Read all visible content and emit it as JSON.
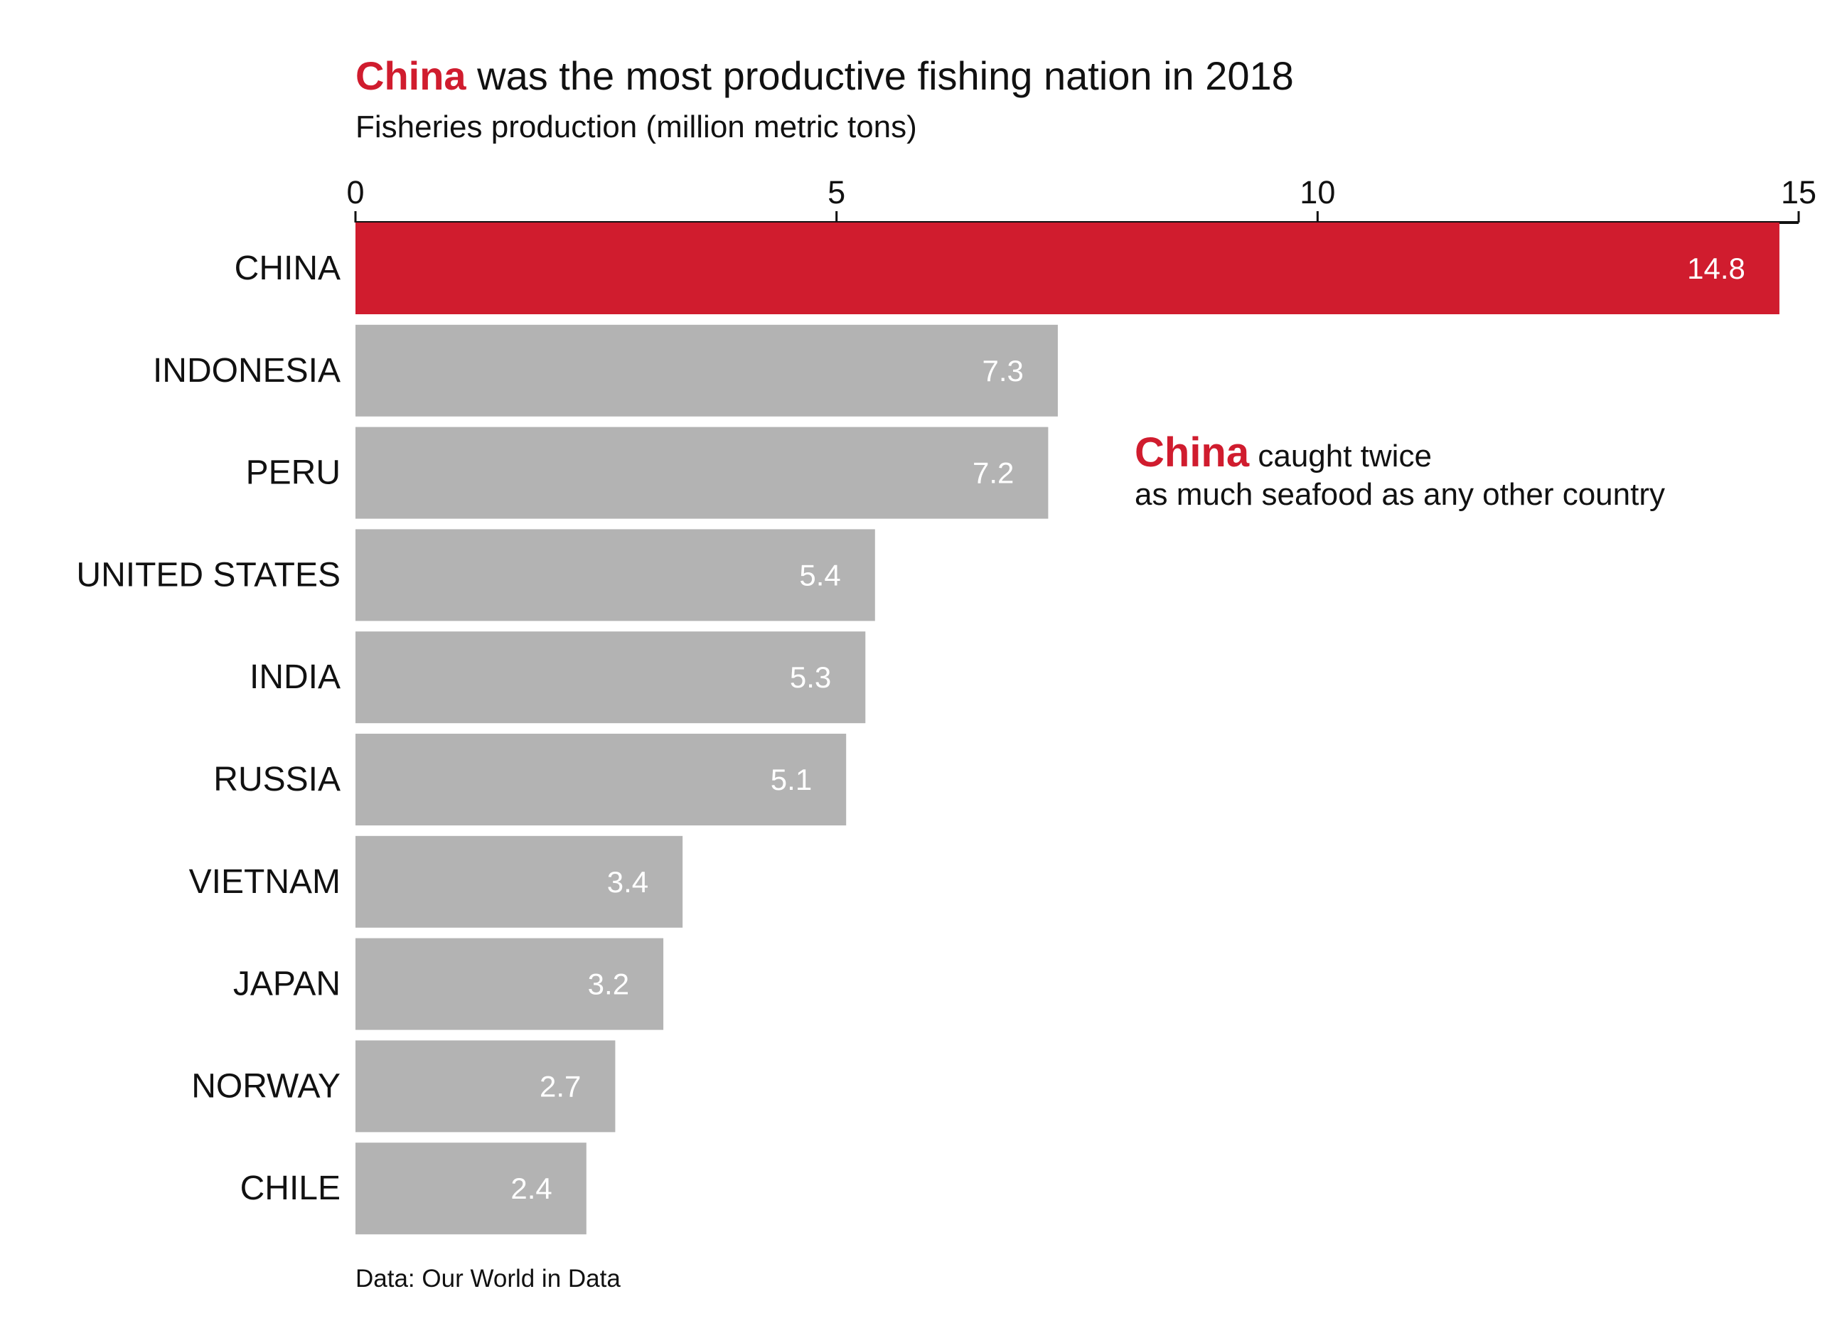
{
  "title": {
    "highlight": "China",
    "rest": " was the most productive fishing nation in 2018"
  },
  "subtitle": "Fisheries production (million metric tons)",
  "annotation": {
    "highlight": "China",
    "line1_rest": " caught twice",
    "line2": "as much seafood as any other country"
  },
  "source": "Data: Our World in Data",
  "colors": {
    "highlight": "#d01c2e",
    "bar": "#b3b3b3",
    "text": "#111111",
    "value_label": "#ffffff"
  },
  "chart_data": {
    "type": "bar",
    "orientation": "horizontal",
    "axis_position": "top",
    "xlim": [
      0,
      15
    ],
    "xticks": [
      0,
      5,
      10,
      15
    ],
    "grid": false,
    "categories": [
      "CHINA",
      "INDONESIA",
      "PERU",
      "UNITED STATES",
      "INDIA",
      "RUSSIA",
      "VIETNAM",
      "JAPAN",
      "NORWAY",
      "CHILE"
    ],
    "values": [
      14.8,
      7.3,
      7.2,
      5.4,
      5.3,
      5.1,
      3.4,
      3.2,
      2.7,
      2.4
    ],
    "value_labels": [
      "14.8",
      "7.3",
      "7.2",
      "5.4",
      "5.3",
      "5.1",
      "3.4",
      "3.2",
      "2.7",
      "2.4"
    ],
    "highlighted_category": "CHINA"
  }
}
